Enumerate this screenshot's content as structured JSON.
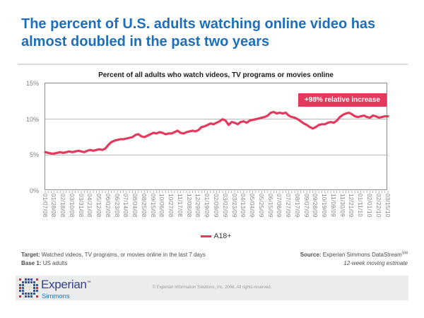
{
  "slide": {
    "title": "The percent of U.S. adults watching online video has almost doubled in the past two years",
    "notes": {
      "target_label": "Target:",
      "target_text": " Watched videos, TV programs, or movies online in the last 7 days",
      "base_label": "Base 1:",
      "base_text": " US adults",
      "source_label": "Source:",
      "source_text": "  Experian Simmons DataStream",
      "source_sup": "SM",
      "source_line2": "12-week moving estimate"
    },
    "brand": {
      "wordmark": "Experian",
      "trademark": "™",
      "sub_brand": "Simmons",
      "copyright": "© Experian Information Solutions, Inc. 2008.  All rights reserved."
    }
  },
  "chart_data": {
    "type": "line",
    "title": "Percent of all adults who watch videos, TV programs or movies online",
    "xlabel": "",
    "ylabel": "",
    "ylim": [
      0,
      15
    ],
    "grid": "horizontal",
    "legend_position": "bottom-center",
    "y_tick_values": [
      15,
      10,
      5,
      0
    ],
    "y_tick_labels": [
      "15%",
      "10%",
      "5%",
      "0%"
    ],
    "x_label_interval_weeks": 3,
    "x_tick_labels": [
      "01/07/08",
      "01/28/08",
      "02/18/08",
      "03/10/08",
      "03/31/08",
      "04/21/08",
      "05/12/08",
      "06/02/08",
      "06/23/08",
      "07/14/08",
      "08/04/08",
      "08/25/08",
      "09/15/08",
      "10/06/08",
      "10/27/08",
      "11/17/08",
      "12/08/08",
      "12/29/08",
      "01/19/09",
      "02/09/09",
      "03/02/09",
      "03/23/09",
      "04/13/09",
      "05/04/09",
      "05/25/09",
      "06/15/09",
      "07/06/09",
      "07/27/09",
      "08/17/09",
      "09/07/09",
      "09/28/09",
      "10/19/09",
      "11/09/09",
      "11/30/09",
      "12/21/09",
      "01/11/10",
      "02/01/10",
      "02/22/10",
      "03/15/10"
    ],
    "series": [
      {
        "name": "A18+",
        "color": "#E4395C",
        "values": [
          5.4,
          5.3,
          5.2,
          5.2,
          5.3,
          5.4,
          5.3,
          5.4,
          5.5,
          5.4,
          5.5,
          5.6,
          5.5,
          5.4,
          5.6,
          5.7,
          5.6,
          5.7,
          5.8,
          5.7,
          5.9,
          6.4,
          6.8,
          7.0,
          7.1,
          7.2,
          7.2,
          7.3,
          7.4,
          7.5,
          7.8,
          7.9,
          7.6,
          7.5,
          7.7,
          7.9,
          8.1,
          8.0,
          8.2,
          8.1,
          7.9,
          8.0,
          8.0,
          8.2,
          8.4,
          8.1,
          8.0,
          8.2,
          8.3,
          8.4,
          8.3,
          8.5,
          8.9,
          9.0,
          9.2,
          9.4,
          9.3,
          9.5,
          9.7,
          10.0,
          9.8,
          9.2,
          9.6,
          9.5,
          9.3,
          9.6,
          9.7,
          9.5,
          9.8,
          9.9,
          10.0,
          10.1,
          10.2,
          10.3,
          10.5,
          10.9,
          11.0,
          10.8,
          10.9,
          10.8,
          10.9,
          10.5,
          10.3,
          10.2,
          10.0,
          9.7,
          9.4,
          9.2,
          8.9,
          8.7,
          8.9,
          9.2,
          9.3,
          9.3,
          9.5,
          9.6,
          9.5,
          9.8,
          10.3,
          10.6,
          10.8,
          10.9,
          10.7,
          10.4,
          10.3,
          10.4,
          10.5,
          10.3,
          10.2,
          10.5,
          10.4,
          10.2,
          10.3,
          10.4,
          10.4
        ]
      }
    ],
    "annotation": {
      "text": "+98% relative increase",
      "bg": "#E4395C",
      "color": "#FFFFFF"
    }
  },
  "colors": {
    "title_blue": "#1B6FBE",
    "line_crimson": "#E4395C",
    "grid_gray": "#B3B3B3",
    "axis_gray": "#8C8C8C",
    "logo_blue": "#2456A4",
    "logo_red": "#D2232A"
  }
}
